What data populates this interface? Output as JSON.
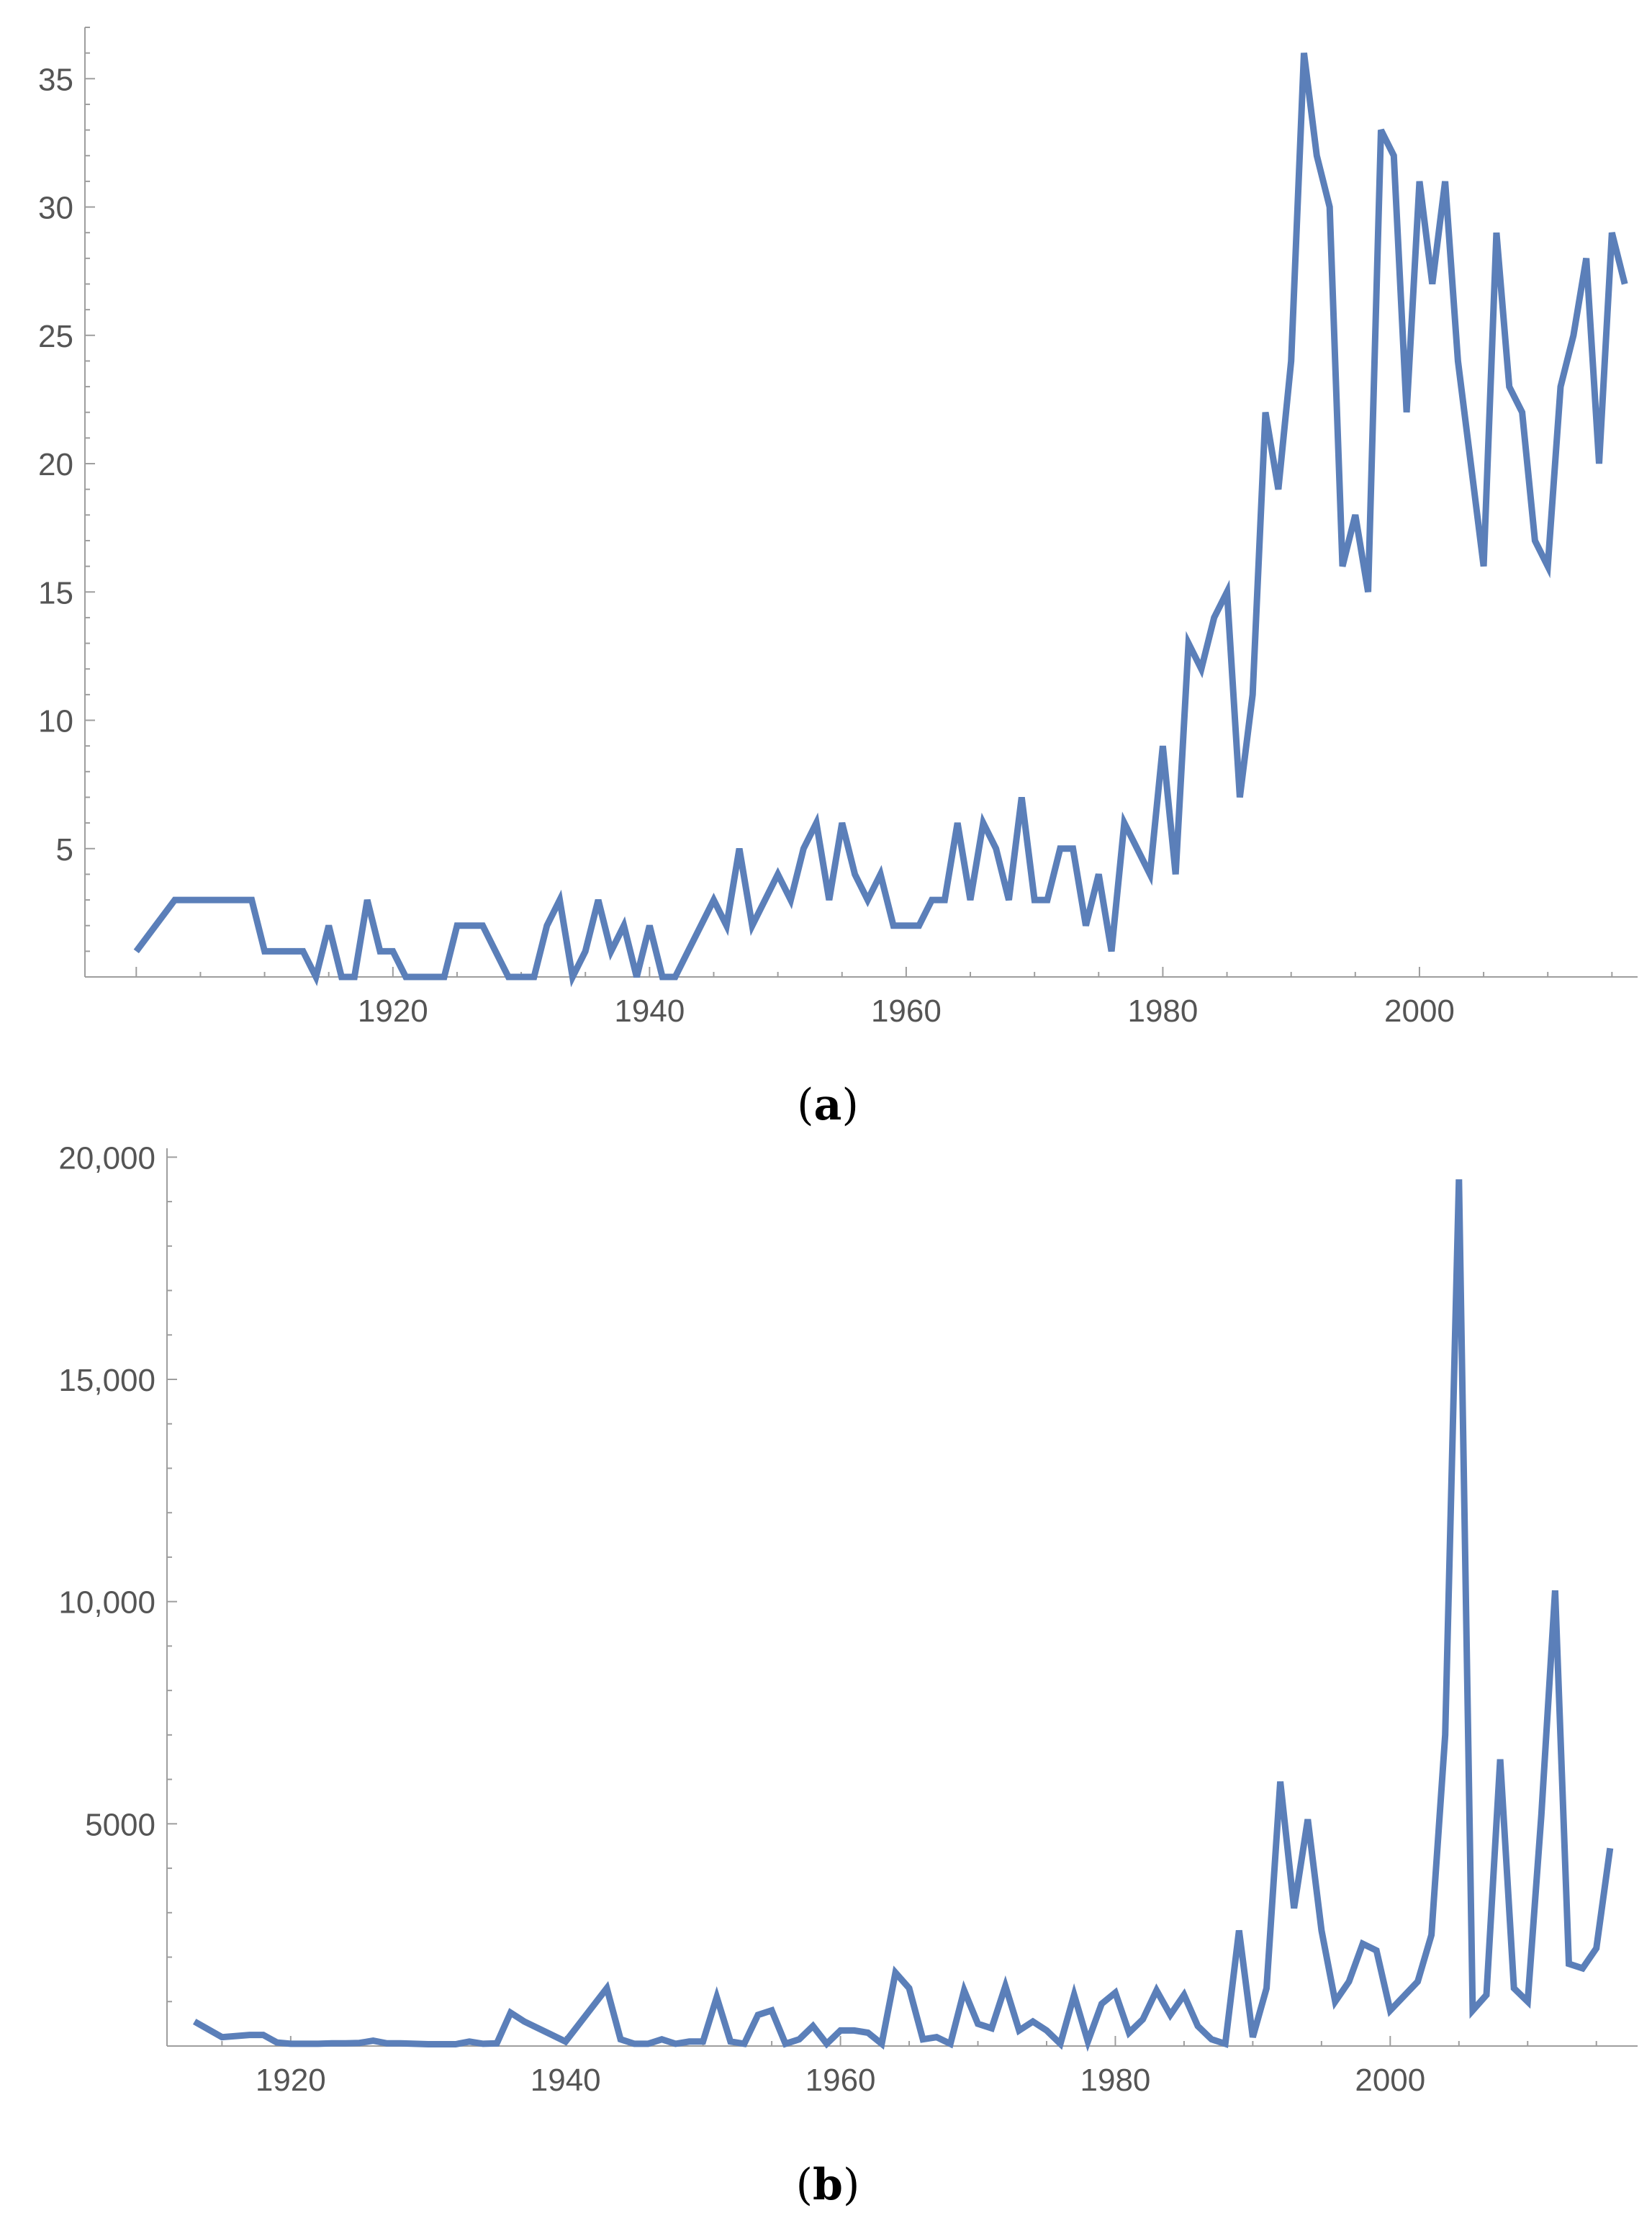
{
  "chart_data": [
    {
      "type": "line",
      "panel_label": "(a)",
      "title": "",
      "xlabel": "",
      "ylabel": "",
      "xlim": [
        1896,
        2017
      ],
      "ylim": [
        0,
        37
      ],
      "x_ticks": [
        1920,
        1940,
        1960,
        1980,
        2000
      ],
      "x_tick_labels": [
        "1920",
        "1940",
        "1960",
        "1980",
        "2000"
      ],
      "y_ticks": [
        5,
        10,
        15,
        20,
        25,
        30,
        35
      ],
      "y_tick_labels": [
        "5",
        "10",
        "15",
        "20",
        "25",
        "30",
        "35"
      ],
      "grid": false,
      "color": "#5b7fb9",
      "series": [
        {
          "x": [
            1900,
            1903,
            1904,
            1905,
            1906,
            1907,
            1908,
            1909,
            1910,
            1911,
            1912,
            1913,
            1914,
            1915,
            1916,
            1917,
            1918,
            1919,
            1920,
            1921,
            1922,
            1923,
            1924,
            1925,
            1926,
            1927,
            1928,
            1929,
            1930,
            1931,
            1932,
            1933,
            1934,
            1935,
            1936,
            1937,
            1938,
            1939,
            1940,
            1941,
            1942,
            1943,
            1944,
            1945,
            1946,
            1947,
            1948,
            1949,
            1950,
            1951,
            1952,
            1953,
            1954,
            1955,
            1956,
            1957,
            1958,
            1959,
            1960,
            1961,
            1962,
            1963,
            1964,
            1965,
            1966,
            1967,
            1968,
            1969,
            1970,
            1971,
            1972,
            1973,
            1974,
            1975,
            1976,
            1977,
            1978,
            1979,
            1980,
            1981,
            1982,
            1983,
            1984,
            1985,
            1986,
            1987,
            1988,
            1989,
            1990,
            1991,
            1992,
            1993,
            1994,
            1995,
            1996,
            1997,
            1998,
            1999,
            2000,
            2001,
            2002,
            2003,
            2004,
            2005,
            2006,
            2007,
            2008,
            2009,
            2010,
            2011,
            2012,
            2013,
            2014,
            2015,
            2016
          ],
          "y": [
            1,
            3,
            3,
            3,
            3,
            3,
            3,
            3,
            1,
            1,
            1,
            1,
            0,
            2,
            0,
            0,
            3,
            1,
            1,
            0,
            0,
            0,
            0,
            2,
            2,
            2,
            1,
            0,
            0,
            0,
            2,
            3,
            0,
            1,
            3,
            1,
            2,
            0,
            2,
            0,
            0,
            1,
            2,
            3,
            2,
            5,
            2,
            3,
            4,
            3,
            5,
            6,
            3,
            6,
            4,
            3,
            4,
            2,
            2,
            2,
            3,
            3,
            6,
            3,
            6,
            5,
            3,
            7,
            3,
            3,
            5,
            5,
            2,
            4,
            1,
            6,
            5,
            4,
            9,
            4,
            13,
            12,
            14,
            15,
            7,
            11,
            22,
            19,
            24,
            36,
            32,
            30,
            16,
            18,
            15,
            33,
            32,
            22,
            31,
            27,
            31,
            24,
            20,
            16,
            29,
            23,
            22,
            17,
            16,
            23,
            25,
            28,
            20,
            29,
            27
          ]
        }
      ]
    },
    {
      "type": "line",
      "panel_label": "(b)",
      "title": "",
      "xlabel": "",
      "ylabel": "",
      "xlim": [
        1911,
        2018
      ],
      "ylim": [
        0,
        20200
      ],
      "x_ticks": [
        1920,
        1940,
        1960,
        1980,
        2000
      ],
      "x_tick_labels": [
        "1920",
        "1940",
        "1960",
        "1980",
        "2000"
      ],
      "y_ticks": [
        5000,
        10000,
        15000,
        20000
      ],
      "y_tick_labels": [
        "5000",
        "10,000",
        "15,000",
        "20,000"
      ],
      "grid": false,
      "color": "#5b7fb9",
      "series": [
        {
          "x": [
            1913,
            1915,
            1917,
            1918,
            1919,
            1920,
            1921,
            1922,
            1923,
            1924,
            1925,
            1926,
            1927,
            1928,
            1929,
            1930,
            1931,
            1932,
            1933,
            1934,
            1935,
            1936,
            1937,
            1940,
            1943,
            1944,
            1945,
            1946,
            1947,
            1948,
            1949,
            1950,
            1951,
            1952,
            1953,
            1954,
            1955,
            1956,
            1957,
            1958,
            1959,
            1960,
            1961,
            1962,
            1963,
            1964,
            1965,
            1966,
            1967,
            1968,
            1969,
            1970,
            1971,
            1972,
            1973,
            1974,
            1975,
            1976,
            1977,
            1978,
            1979,
            1980,
            1981,
            1982,
            1983,
            1984,
            1985,
            1986,
            1987,
            1988,
            1989,
            1990,
            1991,
            1992,
            1993,
            1994,
            1995,
            1996,
            1997,
            1998,
            1999,
            2000,
            2002,
            2003,
            2004,
            2005,
            2006,
            2007,
            2008,
            2009,
            2010,
            2011,
            2012,
            2013,
            2014,
            2015,
            2016
          ],
          "y": [
            550,
            200,
            250,
            250,
            80,
            50,
            50,
            50,
            60,
            60,
            70,
            120,
            60,
            60,
            50,
            40,
            40,
            40,
            100,
            50,
            60,
            750,
            550,
            100,
            1300,
            150,
            50,
            50,
            150,
            50,
            100,
            100,
            1100,
            100,
            50,
            700,
            800,
            50,
            150,
            450,
            50,
            350,
            350,
            300,
            50,
            1650,
            1300,
            150,
            200,
            50,
            1250,
            500,
            400,
            1350,
            350,
            550,
            350,
            50,
            1150,
            100,
            950,
            1200,
            300,
            600,
            1250,
            700,
            1150,
            450,
            150,
            50,
            2600,
            200,
            1300,
            5950,
            3100,
            5100,
            2600,
            1000,
            1450,
            2300,
            2150,
            800,
            1450,
            2500,
            7000,
            19500,
            800,
            1150,
            6450,
            1300,
            1000,
            5200,
            10250,
            1850,
            1750,
            2200,
            4450
          ]
        }
      ]
    }
  ]
}
